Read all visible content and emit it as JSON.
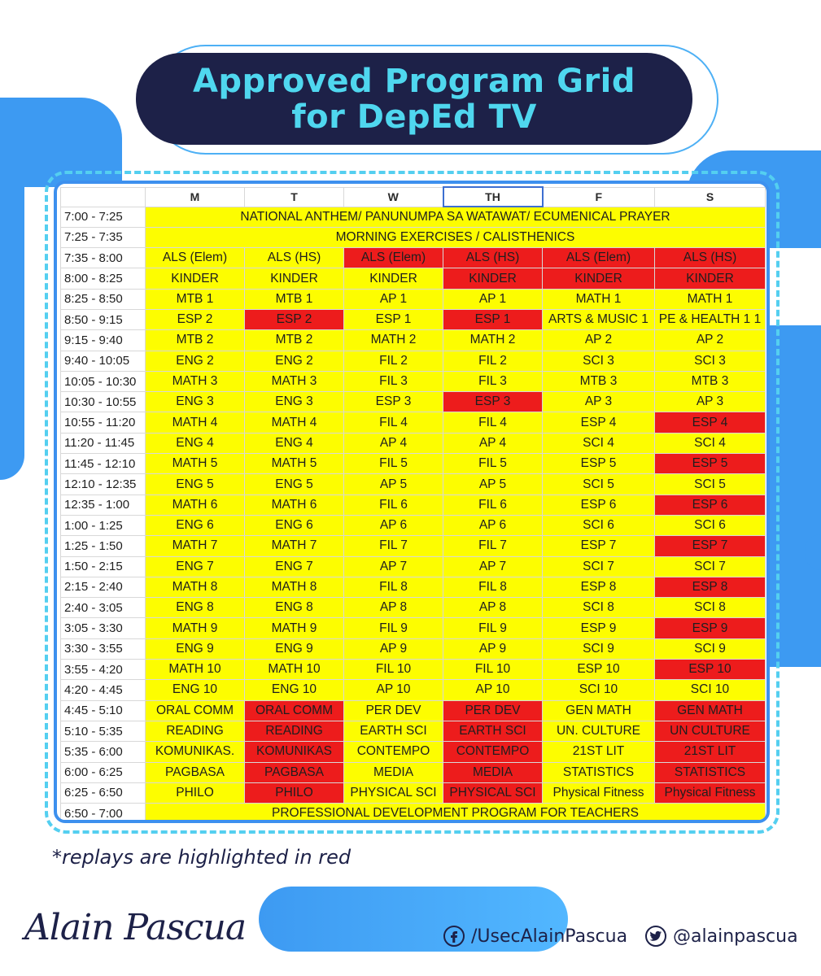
{
  "title": {
    "line1": "Approved Program Grid",
    "line2": "for DepEd TV"
  },
  "days": [
    "M",
    "T",
    "W",
    "TH",
    "F",
    "S"
  ],
  "rows": [
    {
      "time": "7:00 - 7:25",
      "span": "NATIONAL ANTHEM/ PANUNUMPA SA WATAWAT/ ECUMENICAL PRAYER"
    },
    {
      "time": "7:25 - 7:35",
      "span": "MORNING EXERCISES / CALISTHENICS"
    },
    {
      "time": "7:35 - 8:00",
      "cells": [
        [
          "ALS (Elem)",
          "y"
        ],
        [
          "ALS (HS)",
          "y"
        ],
        [
          "ALS (Elem)",
          "r"
        ],
        [
          "ALS (HS)",
          "r"
        ],
        [
          "ALS (Elem)",
          "r"
        ],
        [
          "ALS (HS)",
          "r"
        ]
      ]
    },
    {
      "time": "8:00 - 8:25",
      "cells": [
        [
          "KINDER",
          "y"
        ],
        [
          "KINDER",
          "y"
        ],
        [
          "KINDER",
          "y"
        ],
        [
          "KINDER",
          "r"
        ],
        [
          "KINDER",
          "r"
        ],
        [
          "KINDER",
          "r"
        ]
      ]
    },
    {
      "time": "8:25 - 8:50",
      "cells": [
        [
          "MTB 1",
          "y"
        ],
        [
          "MTB 1",
          "y"
        ],
        [
          "AP 1",
          "y"
        ],
        [
          "AP 1",
          "y"
        ],
        [
          "MATH 1",
          "y"
        ],
        [
          "MATH 1",
          "y"
        ]
      ]
    },
    {
      "time": "8:50 - 9:15",
      "cells": [
        [
          "ESP 2",
          "y"
        ],
        [
          "ESP 2",
          "r"
        ],
        [
          "ESP 1",
          "y"
        ],
        [
          "ESP 1",
          "r"
        ],
        [
          "ARTS & MUSIC 1",
          "y"
        ],
        [
          "PE & HEALTH 1 1",
          "y"
        ]
      ]
    },
    {
      "time": "9:15 - 9:40",
      "cells": [
        [
          "MTB 2",
          "y"
        ],
        [
          "MTB 2",
          "y"
        ],
        [
          "MATH 2",
          "y"
        ],
        [
          "MATH 2",
          "y"
        ],
        [
          "AP 2",
          "y"
        ],
        [
          "AP 2",
          "y"
        ]
      ]
    },
    {
      "time": "9:40 - 10:05",
      "cells": [
        [
          "ENG 2",
          "y"
        ],
        [
          "ENG 2",
          "y"
        ],
        [
          "FIL 2",
          "y"
        ],
        [
          "FIL 2",
          "y"
        ],
        [
          "SCI 3",
          "y"
        ],
        [
          "SCI 3",
          "y"
        ]
      ]
    },
    {
      "time": "10:05 - 10:30",
      "cells": [
        [
          "MATH 3",
          "y"
        ],
        [
          "MATH 3",
          "y"
        ],
        [
          "FIL 3",
          "y"
        ],
        [
          "FIL 3",
          "y"
        ],
        [
          "MTB 3",
          "y"
        ],
        [
          "MTB 3",
          "y"
        ]
      ]
    },
    {
      "time": "10:30 - 10:55",
      "cells": [
        [
          "ENG 3",
          "y"
        ],
        [
          "ENG 3",
          "y"
        ],
        [
          "ESP 3",
          "y"
        ],
        [
          "ESP 3",
          "r"
        ],
        [
          "AP 3",
          "y"
        ],
        [
          "AP 3",
          "y"
        ]
      ]
    },
    {
      "time": "10:55 - 11:20",
      "cells": [
        [
          "MATH 4",
          "y"
        ],
        [
          "MATH 4",
          "y"
        ],
        [
          "FIL 4",
          "y"
        ],
        [
          "FIL 4",
          "y"
        ],
        [
          "ESP 4",
          "y"
        ],
        [
          "ESP 4",
          "r"
        ]
      ]
    },
    {
      "time": "11:20 - 11:45",
      "cells": [
        [
          "ENG 4",
          "y"
        ],
        [
          "ENG 4",
          "y"
        ],
        [
          "AP 4",
          "y"
        ],
        [
          "AP 4",
          "y"
        ],
        [
          "SCI 4",
          "y"
        ],
        [
          "SCI 4",
          "y"
        ]
      ]
    },
    {
      "time": "11:45 - 12:10",
      "cells": [
        [
          "MATH 5",
          "y"
        ],
        [
          "MATH 5",
          "y"
        ],
        [
          "FIL 5",
          "y"
        ],
        [
          "FIL 5",
          "y"
        ],
        [
          "ESP 5",
          "y"
        ],
        [
          "ESP 5",
          "r"
        ]
      ]
    },
    {
      "time": "12:10 - 12:35",
      "cells": [
        [
          "ENG 5",
          "y"
        ],
        [
          "ENG 5",
          "y"
        ],
        [
          "AP 5",
          "y"
        ],
        [
          "AP 5",
          "y"
        ],
        [
          "SCI 5",
          "y"
        ],
        [
          "SCI 5",
          "y"
        ]
      ]
    },
    {
      "time": "12:35 - 1:00",
      "cells": [
        [
          "MATH 6",
          "y"
        ],
        [
          "MATH 6",
          "y"
        ],
        [
          "FIL 6",
          "y"
        ],
        [
          "FIL 6",
          "y"
        ],
        [
          "ESP 6",
          "y"
        ],
        [
          "ESP 6",
          "r"
        ]
      ]
    },
    {
      "time": "1:00 - 1:25",
      "cells": [
        [
          "ENG 6",
          "y"
        ],
        [
          "ENG 6",
          "y"
        ],
        [
          "AP 6",
          "y"
        ],
        [
          "AP 6",
          "y"
        ],
        [
          "SCI 6",
          "y"
        ],
        [
          "SCI 6",
          "y"
        ]
      ]
    },
    {
      "time": "1:25 - 1:50",
      "cells": [
        [
          "MATH 7",
          "y"
        ],
        [
          "MATH 7",
          "y"
        ],
        [
          "FIL 7",
          "y"
        ],
        [
          "FIL 7",
          "y"
        ],
        [
          "ESP 7",
          "y"
        ],
        [
          "ESP 7",
          "r"
        ]
      ]
    },
    {
      "time": "1:50 - 2:15",
      "cells": [
        [
          "ENG 7",
          "y"
        ],
        [
          "ENG 7",
          "y"
        ],
        [
          "AP 7",
          "y"
        ],
        [
          "AP 7",
          "y"
        ],
        [
          "SCI 7",
          "y"
        ],
        [
          "SCI 7",
          "y"
        ]
      ]
    },
    {
      "time": "2:15 - 2:40",
      "cells": [
        [
          "MATH 8",
          "y"
        ],
        [
          "MATH 8",
          "y"
        ],
        [
          "FIL 8",
          "y"
        ],
        [
          "FIL 8",
          "y"
        ],
        [
          "ESP 8",
          "y"
        ],
        [
          "ESP 8",
          "r"
        ]
      ]
    },
    {
      "time": "2:40 - 3:05",
      "cells": [
        [
          "ENG 8",
          "y"
        ],
        [
          "ENG 8",
          "y"
        ],
        [
          "AP 8",
          "y"
        ],
        [
          "AP 8",
          "y"
        ],
        [
          "SCI 8",
          "y"
        ],
        [
          "SCI 8",
          "y"
        ]
      ]
    },
    {
      "time": "3:05 - 3:30",
      "cells": [
        [
          "MATH 9",
          "y"
        ],
        [
          "MATH 9",
          "y"
        ],
        [
          "FIL 9",
          "y"
        ],
        [
          "FIL 9",
          "y"
        ],
        [
          "ESP 9",
          "y"
        ],
        [
          "ESP 9",
          "r"
        ]
      ]
    },
    {
      "time": "3:30 - 3:55",
      "cells": [
        [
          "ENG 9",
          "y"
        ],
        [
          "ENG 9",
          "y"
        ],
        [
          "AP 9",
          "y"
        ],
        [
          "AP 9",
          "y"
        ],
        [
          "SCI 9",
          "y"
        ],
        [
          "SCI 9",
          "y"
        ]
      ]
    },
    {
      "time": "3:55 - 4:20",
      "cells": [
        [
          "MATH 10",
          "y"
        ],
        [
          "MATH 10",
          "y"
        ],
        [
          "FIL 10",
          "y"
        ],
        [
          "FIL 10",
          "y"
        ],
        [
          "ESP 10",
          "y"
        ],
        [
          "ESP 10",
          "r"
        ]
      ]
    },
    {
      "time": "4:20 - 4:45",
      "cells": [
        [
          "ENG 10",
          "y"
        ],
        [
          "ENG 10",
          "y"
        ],
        [
          "AP 10",
          "y"
        ],
        [
          "AP 10",
          "y"
        ],
        [
          "SCI 10",
          "y"
        ],
        [
          "SCI 10",
          "y"
        ]
      ]
    },
    {
      "time": "4:45 - 5:10",
      "cells": [
        [
          "ORAL COMM",
          "y"
        ],
        [
          "ORAL COMM",
          "r"
        ],
        [
          "PER DEV",
          "y"
        ],
        [
          "PER DEV",
          "r"
        ],
        [
          "GEN MATH",
          "y"
        ],
        [
          "GEN MATH",
          "r"
        ]
      ]
    },
    {
      "time": "5:10 - 5:35",
      "cells": [
        [
          "READING",
          "y"
        ],
        [
          "READING",
          "r"
        ],
        [
          "EARTH SCI",
          "y"
        ],
        [
          "EARTH SCI",
          "r"
        ],
        [
          "UN. CULTURE",
          "y"
        ],
        [
          "UN CULTURE",
          "r"
        ]
      ]
    },
    {
      "time": "5:35 - 6:00",
      "cells": [
        [
          "KOMUNIKAS.",
          "y"
        ],
        [
          "KOMUNIKAS",
          "r"
        ],
        [
          "CONTEMPO",
          "y"
        ],
        [
          "CONTEMPO",
          "r"
        ],
        [
          "21ST LIT",
          "y"
        ],
        [
          "21ST LIT",
          "r"
        ]
      ]
    },
    {
      "time": "6:00 - 6:25",
      "cells": [
        [
          "PAGBASA",
          "y"
        ],
        [
          "PAGBASA",
          "r"
        ],
        [
          "MEDIA",
          "y"
        ],
        [
          "MEDIA",
          "r"
        ],
        [
          "STATISTICS",
          "y"
        ],
        [
          "STATISTICS",
          "r"
        ]
      ]
    },
    {
      "time": "6:25 - 6:50",
      "cells": [
        [
          "PHILO",
          "y"
        ],
        [
          "PHILO",
          "r"
        ],
        [
          "PHYSICAL SCI",
          "y"
        ],
        [
          "PHYSICAL SCI",
          "r"
        ],
        [
          "Physical Fitness",
          "y"
        ],
        [
          "Physical Fitness",
          "r"
        ]
      ]
    },
    {
      "time": "6:50 - 7:00",
      "span": "PROFESSIONAL DEVELOPMENT PROGRAM FOR TEACHERS"
    }
  ],
  "note": "*replays are highlighted in red",
  "signature": "Alain Pascua",
  "social": {
    "facebook": "/UsecAlainPascua",
    "twitter": "@alainpascua"
  },
  "colors": {
    "yellow": "#fdfd00",
    "red": "#ed1c1c",
    "navy": "#1d2148",
    "title_text": "#4fd7ef",
    "blue": "#3d9af2"
  },
  "icons": [
    "facebook-icon",
    "twitter-icon"
  ]
}
